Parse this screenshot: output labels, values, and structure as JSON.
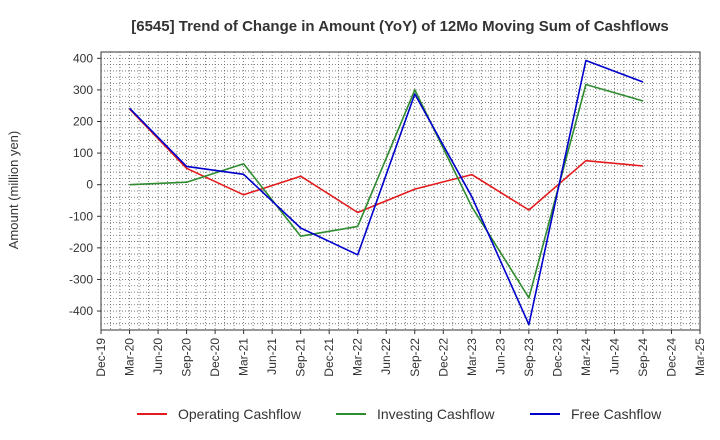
{
  "chart_data": {
    "type": "line",
    "title": "[6545]  Trend of Change in Amount (YoY) of 12Mo Moving Sum of Cashflows",
    "xlabel": "",
    "ylabel": "Amount (million yen)",
    "ylim": [
      -460,
      420
    ],
    "yticks": [
      400,
      300,
      200,
      100,
      0,
      -100,
      -200,
      -300,
      -400
    ],
    "grid": true,
    "legend_position": "bottom",
    "categories": [
      "Dec-19",
      "Mar-20",
      "Jun-20",
      "Sep-20",
      "Dec-20",
      "Mar-21",
      "Jun-21",
      "Sep-21",
      "Dec-21",
      "Mar-22",
      "Jun-22",
      "Sep-22",
      "Dec-22",
      "Mar-23",
      "Jun-23",
      "Sep-23",
      "Dec-23",
      "Mar-24",
      "Jun-24",
      "Sep-24",
      "Dec-24",
      "Mar-25"
    ],
    "series": [
      {
        "name": "Operating Cashflow",
        "color": "#e41a1c",
        "values": [
          null,
          240,
          null,
          52,
          null,
          -32,
          null,
          27,
          null,
          -88,
          null,
          -14,
          null,
          32,
          null,
          -80,
          null,
          76,
          null,
          59,
          null,
          null
        ]
      },
      {
        "name": "Investing Cashflow",
        "color": "#2e8b2e",
        "values": [
          null,
          0,
          null,
          8,
          null,
          66,
          null,
          -163,
          null,
          -132,
          null,
          300,
          null,
          -70,
          null,
          -358,
          null,
          317,
          null,
          265,
          null,
          null
        ]
      },
      {
        "name": "Free Cashflow",
        "color": "#0000cc",
        "values": [
          null,
          242,
          null,
          58,
          null,
          33,
          null,
          -137,
          null,
          -222,
          null,
          287,
          null,
          -38,
          null,
          -443,
          null,
          393,
          null,
          325,
          null,
          null
        ]
      }
    ]
  }
}
